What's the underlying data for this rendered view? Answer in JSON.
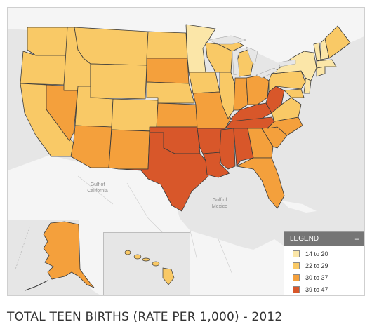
{
  "caption": "TOTAL TEEN BIRTHS (RATE PER 1,000) - 2012",
  "legend": {
    "title": "LEGEND",
    "collapse_glyph": "–",
    "items": [
      {
        "label": "14 to 20",
        "color": "#fbe6a8"
      },
      {
        "label": "22 to 29",
        "color": "#f9c966"
      },
      {
        "label": "30 to 37",
        "color": "#f4a03c"
      },
      {
        "label": "39 to 47",
        "color": "#d8572a"
      }
    ]
  },
  "map_labels": {
    "gulf_california": [
      "Gulf of",
      "California"
    ],
    "gulf_mexico": [
      "Gulf of",
      "Mexico"
    ]
  },
  "colors": {
    "water": "#e6e6e6",
    "land_background": "#f5f5f5",
    "state_border": "#3a3a3a"
  },
  "state_classes": {
    "14 to 20": [
      "MN",
      "VT",
      "NH",
      "MA",
      "CT",
      "NJ",
      "NY"
    ],
    "22 to 29": [
      "WA",
      "OR",
      "CA",
      "ID",
      "MT",
      "WY",
      "UT",
      "CO",
      "ND",
      "NE",
      "IA",
      "WI",
      "MI",
      "IL",
      "PA",
      "ME",
      "MD",
      "VA",
      "HI"
    ],
    "30 to 37": [
      "NV",
      "AZ",
      "NM",
      "SD",
      "KS",
      "MO",
      "IN",
      "OH",
      "NC",
      "SC",
      "GA",
      "FL",
      "AK"
    ],
    "39 to 47": [
      "TX",
      "OK",
      "AR",
      "LA",
      "MS",
      "AL",
      "TN",
      "KY",
      "WV"
    ]
  }
}
